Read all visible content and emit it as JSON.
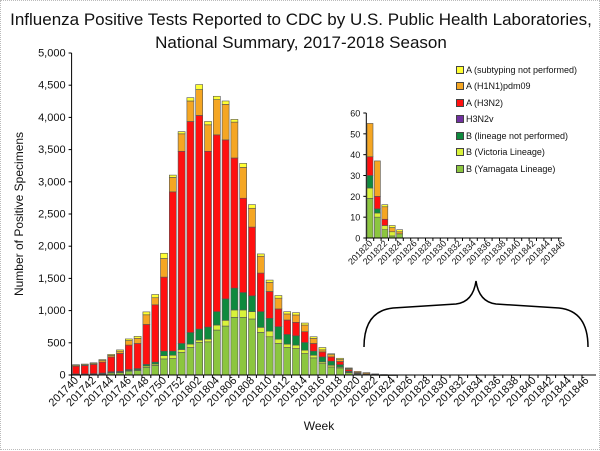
{
  "title_line1": "Influenza Positive Tests Reported to CDC by U.S. Public Health Laboratories,",
  "title_line2": "National Summary, 2017-2018 Season",
  "chart_data": [
    {
      "type": "bar",
      "stacked": true,
      "xlabel": "Week",
      "ylabel": "Number of Positive Specimens",
      "ylim": [
        0,
        5000
      ],
      "yticks": [
        "0",
        "500",
        "1,000",
        "1,500",
        "2,000",
        "2,500",
        "3,000",
        "3,500",
        "4,000",
        "4,500",
        "5,000"
      ],
      "legend_placement": "right",
      "categories": [
        "201740",
        "201741",
        "201742",
        "201743",
        "201744",
        "201745",
        "201746",
        "201747",
        "201748",
        "201749",
        "201750",
        "201751",
        "201752",
        "201801",
        "201802",
        "201803",
        "201804",
        "201805",
        "201806",
        "201807",
        "201808",
        "201809",
        "201810",
        "201811",
        "201812",
        "201813",
        "201814",
        "201815",
        "201816",
        "201817",
        "201818",
        "201819",
        "201820",
        "201821",
        "201822",
        "201823",
        "201824",
        "201825",
        "201826",
        "201827",
        "201828",
        "201829",
        "201830",
        "201831",
        "201832",
        "201833",
        "201834",
        "201835",
        "201836",
        "201837",
        "201838",
        "201839",
        "201840",
        "201841",
        "201842",
        "201843",
        "201844",
        "201845",
        "201846"
      ],
      "series": [
        {
          "name": "B (Yamagata Lineage)",
          "color": "#8cc63f",
          "values": [
            10,
            10,
            12,
            20,
            35,
            40,
            60,
            70,
            120,
            150,
            250,
            255,
            350,
            427,
            505,
            515,
            698,
            760,
            896,
            896,
            870,
            661,
            594,
            490,
            427,
            411,
            333,
            266,
            177,
            125,
            110,
            40,
            19,
            10,
            4,
            1,
            2,
            0,
            0,
            0,
            0,
            0,
            0,
            0,
            0,
            0,
            0,
            0,
            0,
            0,
            0,
            0,
            0,
            0,
            0,
            0,
            0,
            0,
            0
          ]
        },
        {
          "name": "B (Victoria Lineage)",
          "color": "#d9f23a",
          "values": [
            2,
            2,
            3,
            3,
            5,
            5,
            10,
            10,
            20,
            20,
            50,
            52,
            46,
            53,
            37,
            42,
            78,
            89,
            114,
            114,
            114,
            79,
            88,
            67,
            52,
            53,
            52,
            41,
            26,
            26,
            15,
            5,
            5,
            2,
            2,
            2,
            0,
            0,
            0,
            0,
            0,
            0,
            0,
            0,
            0,
            0,
            0,
            0,
            0,
            0,
            0,
            0,
            0,
            0,
            0,
            0,
            0,
            0,
            0
          ]
        },
        {
          "name": "B (lineage not performed)",
          "color": "#0e8a3e",
          "values": [
            5,
            5,
            5,
            7,
            10,
            10,
            15,
            20,
            25,
            30,
            70,
            63,
            94,
            180,
            171,
            188,
            208,
            333,
            339,
            271,
            245,
            244,
            198,
            193,
            151,
            145,
            120,
            63,
            78,
            63,
            35,
            15,
            6,
            2,
            0,
            0,
            0,
            0,
            0,
            0,
            0,
            0,
            0,
            0,
            0,
            0,
            0,
            0,
            0,
            0,
            0,
            0,
            0,
            0,
            0,
            0,
            0,
            0,
            0
          ]
        },
        {
          "name": "H3N2v",
          "color": "#7030a0",
          "values": [
            0,
            0,
            0,
            0,
            0,
            0,
            0,
            0,
            0,
            0,
            0,
            0,
            0,
            0,
            0,
            0,
            0,
            0,
            0,
            0,
            0,
            0,
            0,
            0,
            0,
            0,
            0,
            0,
            0,
            0,
            0,
            0,
            0,
            0,
            0,
            0,
            0,
            0,
            0,
            0,
            0,
            0,
            0,
            0,
            0,
            0,
            0,
            0,
            0,
            0,
            0,
            0,
            0,
            0,
            0,
            0,
            0,
            0,
            0
          ]
        },
        {
          "name": "A (H3N2)",
          "color": "#ff1010",
          "values": [
            120,
            130,
            145,
            170,
            230,
            280,
            380,
            390,
            620,
            890,
            1150,
            2474,
            2984,
            3277,
            3318,
            2729,
            2745,
            2469,
            2021,
            1464,
            1068,
            599,
            417,
            276,
            224,
            209,
            167,
            120,
            78,
            67,
            50,
            25,
            9,
            6,
            3,
            0,
            0,
            0,
            0,
            0,
            0,
            0,
            0,
            0,
            0,
            0,
            0,
            0,
            0,
            0,
            0,
            0,
            0,
            0,
            0,
            0,
            0,
            0,
            0
          ]
        },
        {
          "name": "A (H1N1)pdm09",
          "color": "#f5a623",
          "values": [
            10,
            10,
            12,
            25,
            25,
            35,
            70,
            80,
            150,
            110,
            290,
            224,
            271,
            318,
            401,
            411,
            547,
            552,
            557,
            479,
            292,
            261,
            140,
            167,
            94,
            114,
            104,
            78,
            32,
            35,
            30,
            15,
            16,
            17,
            6,
            2,
            1,
            0,
            0,
            0,
            0,
            0,
            0,
            0,
            0,
            0,
            0,
            0,
            0,
            0,
            0,
            0,
            0,
            0,
            0,
            0,
            0,
            0,
            0
          ]
        },
        {
          "name": "A (subtyping not performed)",
          "color": "#ffff33",
          "values": [
            13,
            13,
            13,
            15,
            15,
            20,
            25,
            30,
            45,
            50,
            80,
            36,
            35,
            52,
            78,
            52,
            52,
            52,
            42,
            62,
            57,
            36,
            37,
            41,
            36,
            37,
            31,
            26,
            36,
            14,
            20,
            10,
            0,
            0,
            1,
            1,
            1,
            0,
            0,
            0,
            0,
            0,
            0,
            0,
            0,
            0,
            0,
            0,
            0,
            0,
            0,
            0,
            0,
            0,
            0,
            0,
            0,
            0,
            0
          ]
        }
      ]
    },
    {
      "type": "bar",
      "stacked": true,
      "inset": true,
      "ylim": [
        0,
        60
      ],
      "yticks": [
        "0",
        "10",
        "20",
        "30",
        "40",
        "50",
        "60"
      ],
      "category_range": [
        "201820",
        "201846"
      ]
    }
  ]
}
